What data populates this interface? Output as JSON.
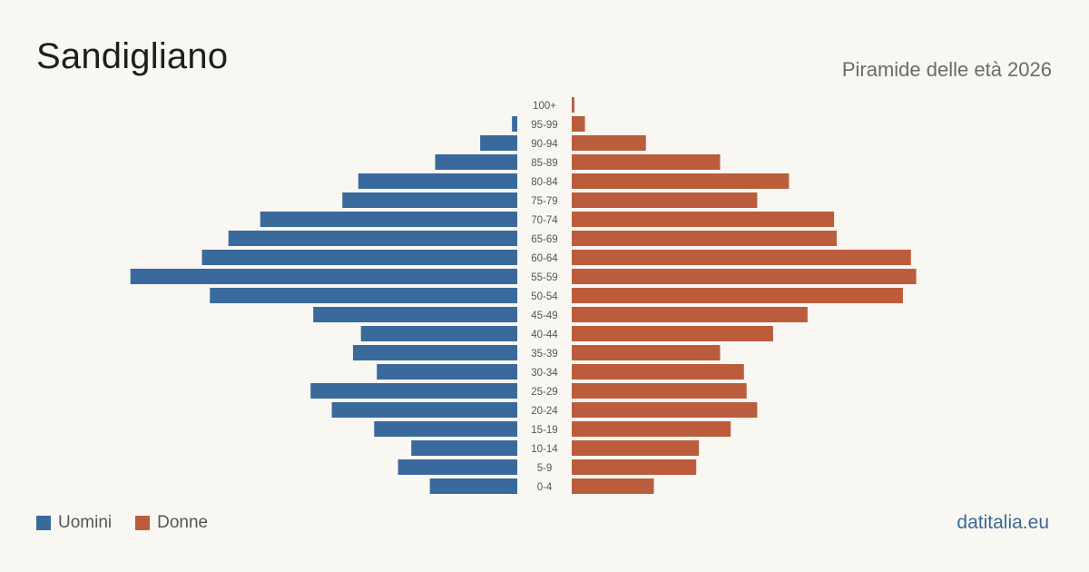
{
  "header": {
    "title": "Sandigliano",
    "subtitle": "Piramide delle età 2026"
  },
  "legend": {
    "men_label": "Uomini",
    "women_label": "Donne"
  },
  "brand": "datitalia.eu",
  "colors": {
    "men": "#3a6a9b",
    "women": "#bb5d3c",
    "background": "#f9f7f2"
  },
  "chart_data": {
    "type": "bar",
    "orientation": "horizontal-pyramid",
    "categories": [
      "100+",
      "95-99",
      "90-94",
      "85-89",
      "80-84",
      "75-79",
      "70-74",
      "65-69",
      "60-64",
      "55-59",
      "50-54",
      "45-49",
      "40-44",
      "35-39",
      "30-34",
      "25-29",
      "20-24",
      "15-19",
      "10-14",
      "5-9",
      "0-4"
    ],
    "series": [
      {
        "name": "Uomini",
        "values": [
          0,
          2,
          14,
          31,
          60,
          66,
          97,
          109,
          119,
          146,
          116,
          77,
          59,
          62,
          53,
          78,
          70,
          54,
          40,
          45,
          33
        ]
      },
      {
        "name": "Donne",
        "values": [
          1,
          5,
          28,
          56,
          82,
          70,
          99,
          100,
          128,
          130,
          125,
          89,
          76,
          56,
          65,
          66,
          70,
          60,
          48,
          47,
          31
        ]
      }
    ],
    "xlim": [
      0,
      150
    ],
    "grid": false,
    "legend_position": "bottom-left"
  }
}
